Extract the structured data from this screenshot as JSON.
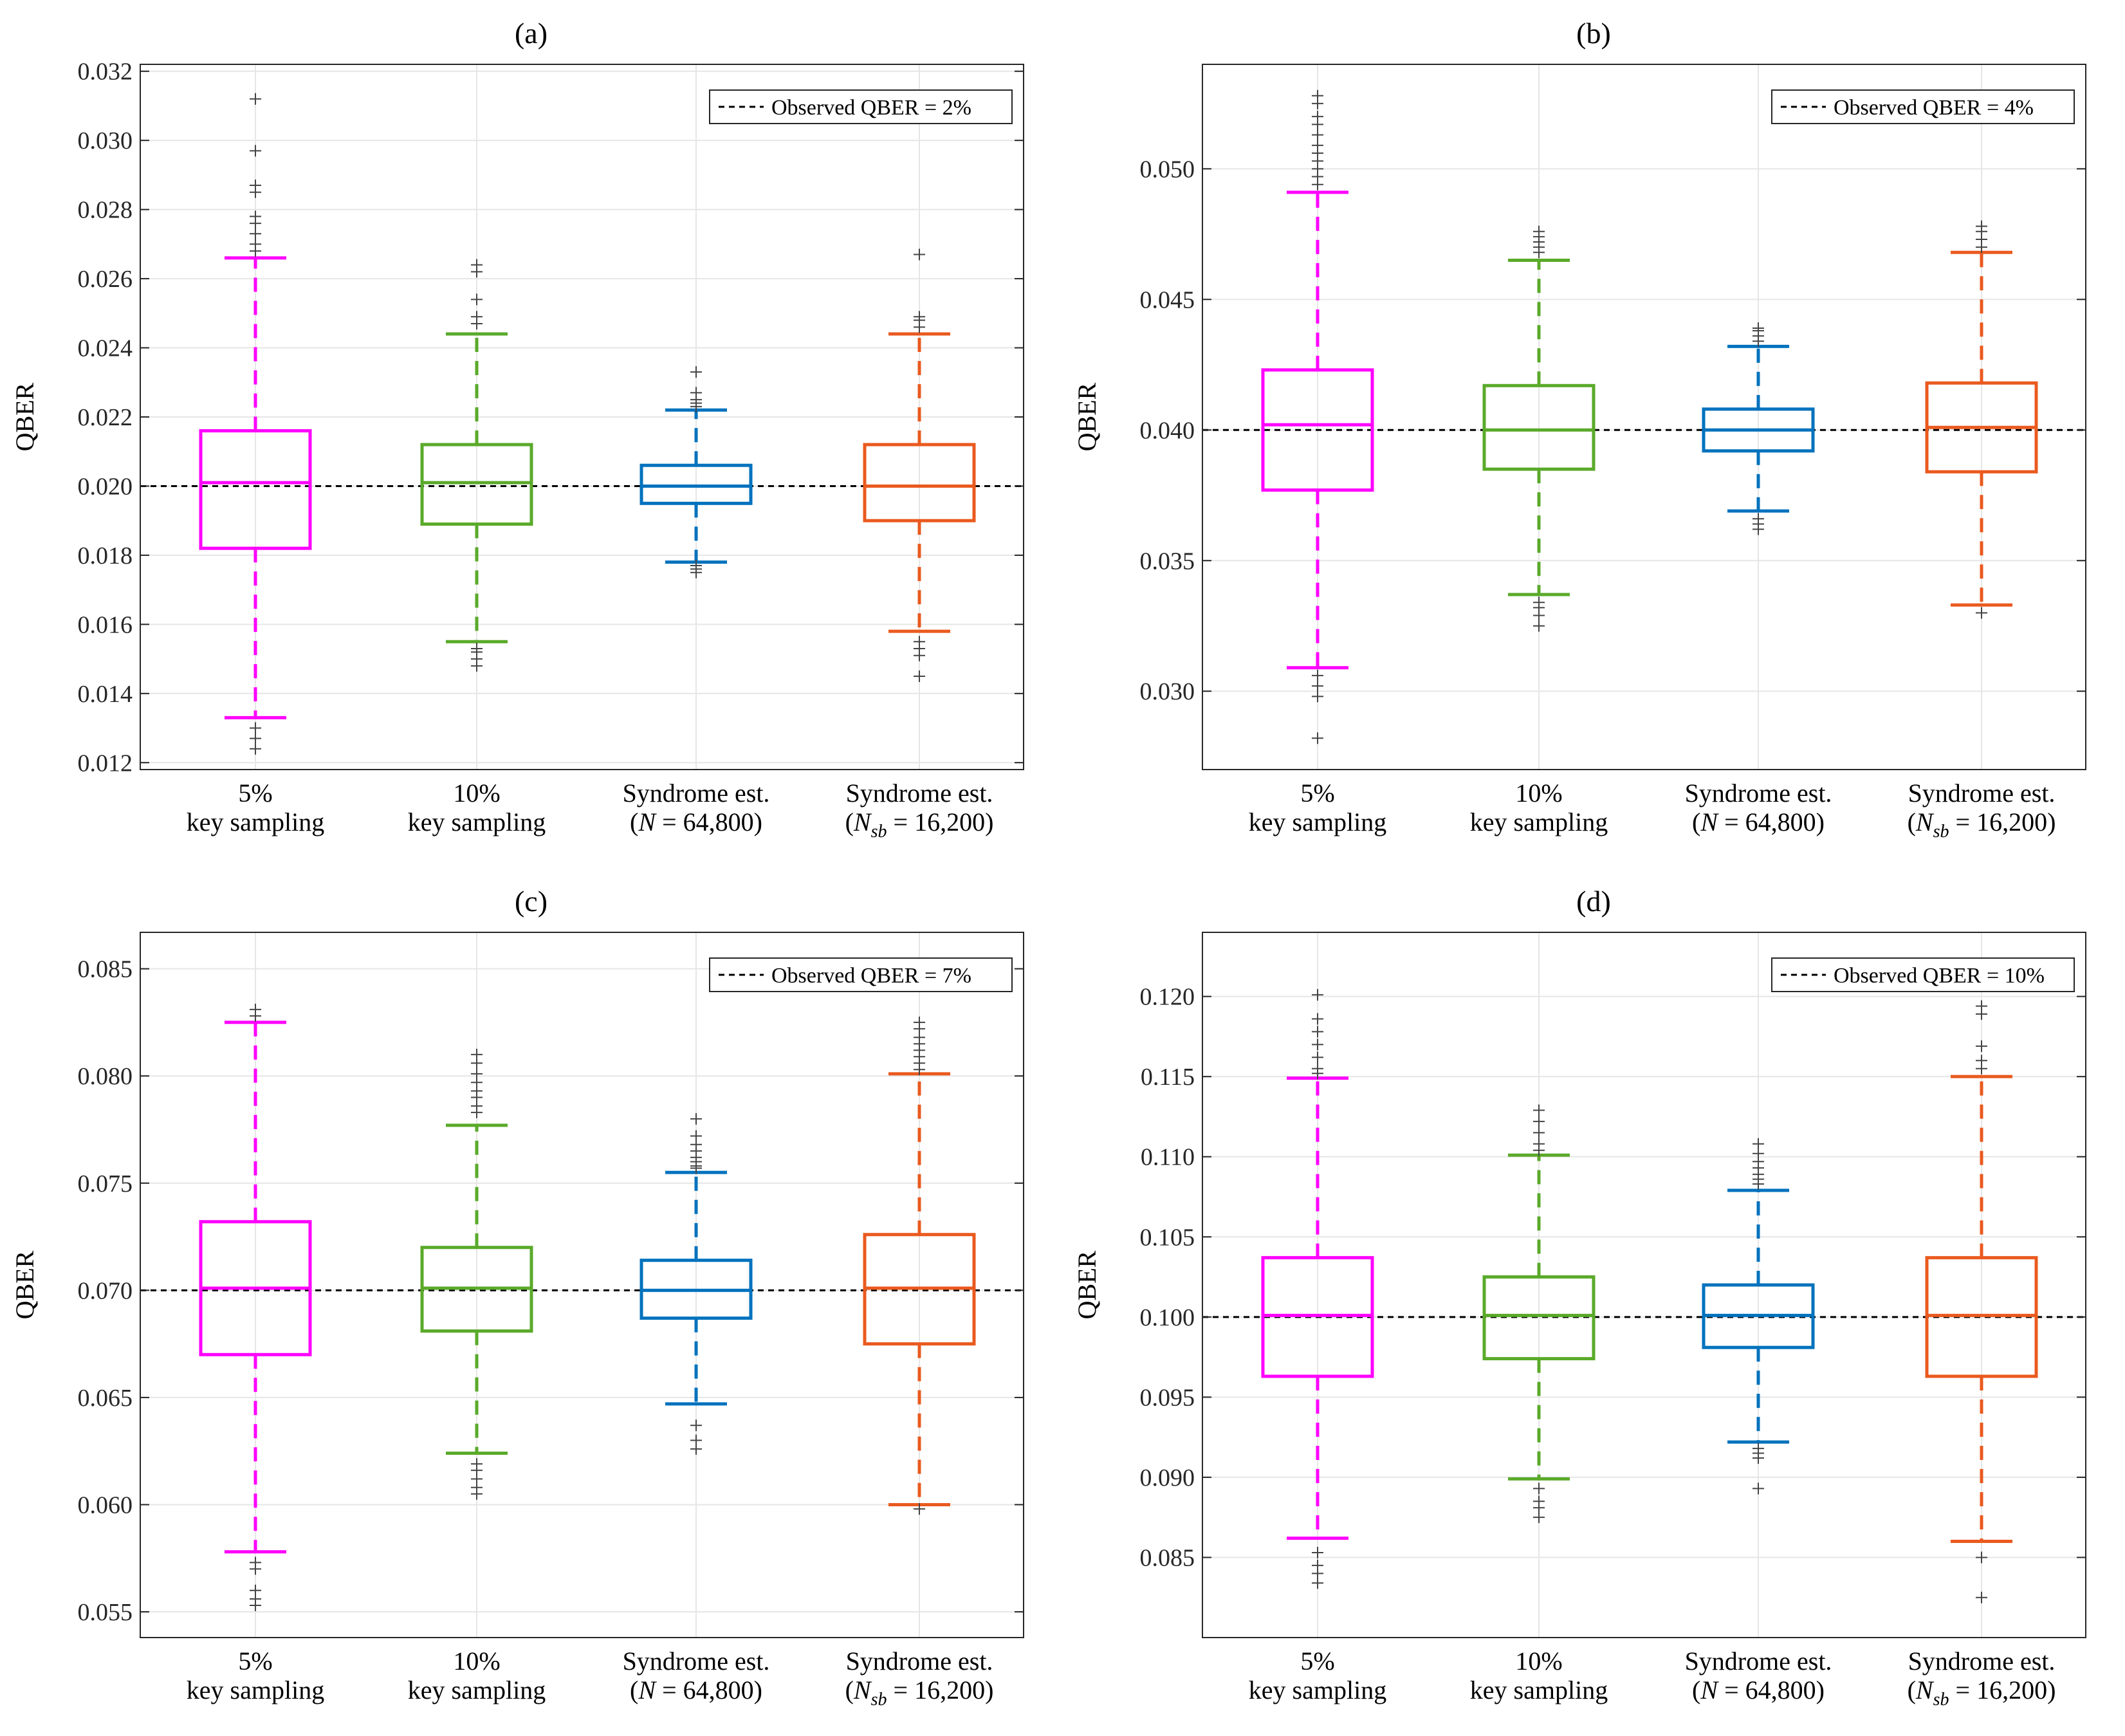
{
  "figure": {
    "ylabel": "QBER",
    "categories": [
      {
        "line1": "5%",
        "line2": "key sampling"
      },
      {
        "line1": "10%",
        "line2": "key sampling"
      },
      {
        "line1": "Syndrome est.",
        "line2_pre": "(",
        "line2_var": "N",
        "line2_sub": "",
        "line2_post": " = 64,800)"
      },
      {
        "line1": "Syndrome est.",
        "line2_pre": "(",
        "line2_var": "N",
        "line2_sub": "sb",
        "line2_post": " = 16,200)"
      }
    ],
    "colors": {
      "5pct": "#ff00ff",
      "10pct": "#5aaa2a",
      "syn_n": "#0072bd",
      "syn_nsb": "#ea5a1f",
      "reference": "#000000",
      "outlier": "#444444"
    }
  },
  "chart_data": [
    {
      "type": "box",
      "panel_label": "(a)",
      "legend": "Observed QBER = 2%",
      "legend_position": "top-right",
      "reference": 0.02,
      "ylim": [
        0.0118,
        0.0322
      ],
      "yticks": [
        0.012,
        0.014,
        0.016,
        0.018,
        0.02,
        0.022,
        0.024,
        0.026,
        0.028,
        0.03,
        0.032
      ],
      "ytick_labels": [
        "0.012",
        "0.014",
        "0.016",
        "0.018",
        "0.020",
        "0.022",
        "0.024",
        "0.026",
        "0.028",
        "0.030",
        "0.032"
      ],
      "boxes": [
        {
          "series": "5% key sampling",
          "whisker_low": 0.0133,
          "q1": 0.0182,
          "median": 0.0201,
          "q3": 0.0216,
          "whisker_high": 0.0266,
          "outliers": [
            0.0312,
            0.0297,
            0.0287,
            0.0285,
            0.0278,
            0.0276,
            0.0273,
            0.027,
            0.0268,
            0.013,
            0.0127,
            0.0124
          ]
        },
        {
          "series": "10% key sampling",
          "whisker_low": 0.0155,
          "q1": 0.0189,
          "median": 0.0201,
          "q3": 0.0212,
          "whisker_high": 0.0244,
          "outliers": [
            0.0264,
            0.0262,
            0.0254,
            0.0249,
            0.0247,
            0.0153,
            0.0152,
            0.015,
            0.0148
          ]
        },
        {
          "series": "Syndrome est. (N = 64,800)",
          "whisker_low": 0.0178,
          "q1": 0.0195,
          "median": 0.02,
          "q3": 0.0206,
          "whisker_high": 0.0222,
          "outliers": [
            0.0233,
            0.0227,
            0.0225,
            0.0224,
            0.0223,
            0.0177,
            0.0176,
            0.0175
          ]
        },
        {
          "series": "Syndrome est. (Nsb = 16,200)",
          "whisker_low": 0.0158,
          "q1": 0.019,
          "median": 0.02,
          "q3": 0.0212,
          "whisker_high": 0.0244,
          "outliers": [
            0.0267,
            0.0249,
            0.0248,
            0.0246,
            0.0155,
            0.0153,
            0.0151,
            0.0145
          ]
        }
      ]
    },
    {
      "type": "box",
      "panel_label": "(b)",
      "legend": "Observed QBER = 4%",
      "legend_position": "top-right",
      "reference": 0.04,
      "ylim": [
        0.027,
        0.054
      ],
      "yticks": [
        0.03,
        0.035,
        0.04,
        0.045,
        0.05
      ],
      "ytick_labels": [
        "0.030",
        "0.035",
        "0.040",
        "0.045",
        "0.050"
      ],
      "boxes": [
        {
          "series": "5% key sampling",
          "whisker_low": 0.0309,
          "q1": 0.0377,
          "median": 0.0402,
          "q3": 0.0423,
          "whisker_high": 0.0491,
          "outliers": [
            0.0528,
            0.0525,
            0.052,
            0.0517,
            0.0513,
            0.0509,
            0.0506,
            0.0503,
            0.05,
            0.0497,
            0.0494,
            0.0306,
            0.0302,
            0.0298,
            0.0282
          ]
        },
        {
          "series": "10% key sampling",
          "whisker_low": 0.0337,
          "q1": 0.0385,
          "median": 0.04,
          "q3": 0.0417,
          "whisker_high": 0.0465,
          "outliers": [
            0.0476,
            0.0474,
            0.0472,
            0.047,
            0.0468,
            0.0334,
            0.0332,
            0.0329,
            0.0325
          ]
        },
        {
          "series": "Syndrome est. (N = 64,800)",
          "whisker_low": 0.0369,
          "q1": 0.0392,
          "median": 0.04,
          "q3": 0.0408,
          "whisker_high": 0.0432,
          "outliers": [
            0.0439,
            0.0438,
            0.0436,
            0.0434,
            0.0366,
            0.0364,
            0.0362
          ]
        },
        {
          "series": "Syndrome est. (Nsb = 16,200)",
          "whisker_low": 0.0333,
          "q1": 0.0384,
          "median": 0.0401,
          "q3": 0.0418,
          "whisker_high": 0.0468,
          "outliers": [
            0.0478,
            0.0476,
            0.0473,
            0.047,
            0.033
          ]
        }
      ]
    },
    {
      "type": "box",
      "panel_label": "(c)",
      "legend": "Observed QBER = 7%",
      "legend_position": "top-right",
      "reference": 0.07,
      "ylim": [
        0.0538,
        0.0867
      ],
      "yticks": [
        0.055,
        0.06,
        0.065,
        0.07,
        0.075,
        0.08,
        0.085
      ],
      "ytick_labels": [
        "0.055",
        "0.060",
        "0.065",
        "0.070",
        "0.075",
        "0.080",
        "0.085"
      ],
      "boxes": [
        {
          "series": "5% key sampling",
          "whisker_low": 0.0578,
          "q1": 0.067,
          "median": 0.0701,
          "q3": 0.0732,
          "whisker_high": 0.0825,
          "outliers": [
            0.0831,
            0.0828,
            0.0573,
            0.057,
            0.056,
            0.0556,
            0.0553
          ]
        },
        {
          "series": "10% key sampling",
          "whisker_low": 0.0624,
          "q1": 0.0681,
          "median": 0.0701,
          "q3": 0.072,
          "whisker_high": 0.0777,
          "outliers": [
            0.081,
            0.0806,
            0.0801,
            0.0797,
            0.0793,
            0.079,
            0.0786,
            0.0783,
            0.0619,
            0.0616,
            0.0612,
            0.0608,
            0.0605
          ]
        },
        {
          "series": "Syndrome est. (N = 64,800)",
          "whisker_low": 0.0647,
          "q1": 0.0687,
          "median": 0.07,
          "q3": 0.0714,
          "whisker_high": 0.0755,
          "outliers": [
            0.078,
            0.0772,
            0.0768,
            0.0765,
            0.0762,
            0.076,
            0.0758,
            0.0757,
            0.0637,
            0.063,
            0.0626
          ]
        },
        {
          "series": "Syndrome est. (Nsb = 16,200)",
          "whisker_low": 0.06,
          "q1": 0.0675,
          "median": 0.0701,
          "q3": 0.0726,
          "whisker_high": 0.0801,
          "outliers": [
            0.0825,
            0.0822,
            0.0818,
            0.0815,
            0.0812,
            0.0809,
            0.0806,
            0.0803,
            0.0598
          ]
        }
      ]
    },
    {
      "type": "box",
      "panel_label": "(d)",
      "legend": "Observed QBER = 10%",
      "legend_position": "top-right",
      "reference": 0.1,
      "ylim": [
        0.08,
        0.124
      ],
      "yticks": [
        0.085,
        0.09,
        0.095,
        0.1,
        0.105,
        0.11,
        0.115,
        0.12
      ],
      "ytick_labels": [
        "0.085",
        "0.090",
        "0.095",
        "0.100",
        "0.105",
        "0.110",
        "0.115",
        "0.120"
      ],
      "boxes": [
        {
          "series": "5% key sampling",
          "whisker_low": 0.0862,
          "q1": 0.0963,
          "median": 0.1001,
          "q3": 0.1037,
          "whisker_high": 0.1149,
          "outliers": [
            0.1201,
            0.1186,
            0.1178,
            0.117,
            0.1162,
            0.1155,
            0.1152,
            0.0853,
            0.0845,
            0.084,
            0.0834
          ]
        },
        {
          "series": "10% key sampling",
          "whisker_low": 0.0899,
          "q1": 0.0974,
          "median": 0.1001,
          "q3": 0.1025,
          "whisker_high": 0.1101,
          "outliers": [
            0.1129,
            0.1122,
            0.1115,
            0.1108,
            0.1104,
            0.0893,
            0.0885,
            0.0881,
            0.0875
          ]
        },
        {
          "series": "Syndrome est. (N = 64,800)",
          "whisker_low": 0.0922,
          "q1": 0.0981,
          "median": 0.1001,
          "q3": 0.102,
          "whisker_high": 0.1079,
          "outliers": [
            0.1108,
            0.1102,
            0.1097,
            0.1093,
            0.1089,
            0.1086,
            0.1083,
            0.0918,
            0.0915,
            0.0912,
            0.0893
          ]
        },
        {
          "series": "Syndrome est. (Nsb = 16,200)",
          "whisker_low": 0.086,
          "q1": 0.0963,
          "median": 0.1001,
          "q3": 0.1037,
          "whisker_high": 0.115,
          "outliers": [
            0.1194,
            0.1189,
            0.1169,
            0.116,
            0.1155,
            0.085,
            0.0825
          ]
        }
      ]
    }
  ]
}
